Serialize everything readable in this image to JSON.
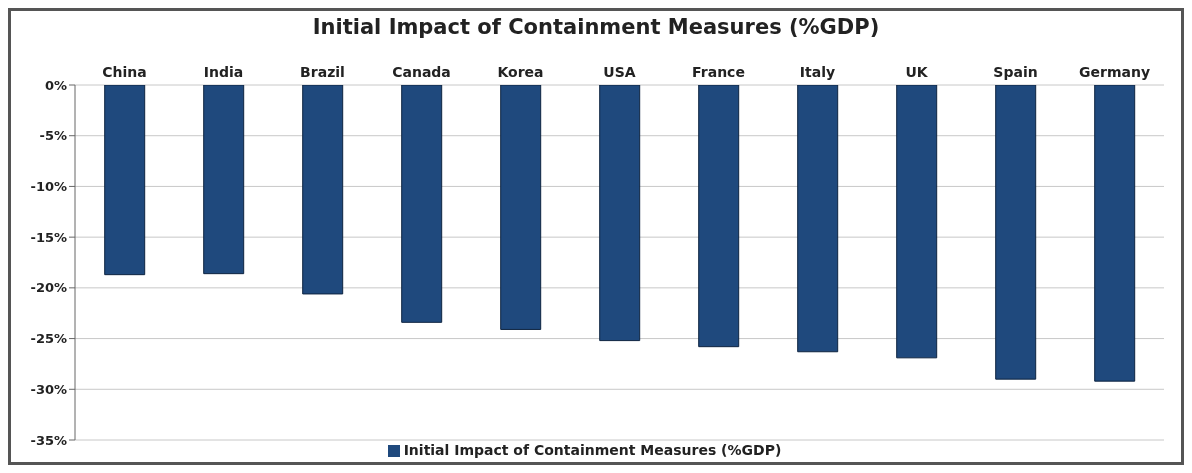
{
  "chart_data": {
    "type": "bar",
    "title": "Initial Impact of Containment Measures (%GDP)",
    "categories": [
      "China",
      "India",
      "Brazil",
      "Canada",
      "Korea",
      "USA",
      "France",
      "Italy",
      "UK",
      "Spain",
      "Germany"
    ],
    "series": [
      {
        "name": "Initial Impact of Containment Measures (%GDP)",
        "color": "#1f497d",
        "values": [
          -18.7,
          -18.6,
          -20.6,
          -23.4,
          -24.1,
          -25.2,
          -25.8,
          -26.3,
          -26.9,
          -29.0,
          -29.2
        ]
      }
    ],
    "ylim": [
      -35,
      0
    ],
    "yticks": [
      {
        "value": 0,
        "label": "0%"
      },
      {
        "value": -5,
        "label": "-5%"
      },
      {
        "value": -10,
        "label": "-10%"
      },
      {
        "value": -15,
        "label": "-15%"
      },
      {
        "value": -20,
        "label": "-20%"
      },
      {
        "value": -25,
        "label": "-25%"
      },
      {
        "value": -30,
        "label": "-30%"
      },
      {
        "value": -35,
        "label": "-35%"
      }
    ],
    "grid": "y",
    "legend": "bottom"
  }
}
